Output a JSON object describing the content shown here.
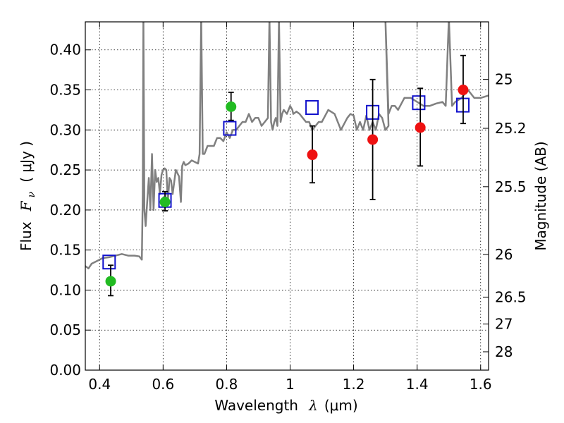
{
  "chart_data": {
    "type": "scatter",
    "xlabel": "Wavelength",
    "xlabel_symbol": "λ",
    "xlabel_unit": "(μm)",
    "ylabel": "Flux",
    "ylabel_symbol": "F",
    "ylabel_subscript": "ν",
    "ylabel_unit": "( μJy )",
    "y2label": "Magnitude (AB)",
    "xlim": [
      0.355,
      1.625
    ],
    "ylim": [
      0.0,
      0.435
    ],
    "grid": true,
    "x_ticks": [
      {
        "value": 0.4,
        "label": "0.4"
      },
      {
        "value": 0.6,
        "label": "0.6"
      },
      {
        "value": 0.8,
        "label": "0.8"
      },
      {
        "value": 1.0,
        "label": "1"
      },
      {
        "value": 1.2,
        "label": "1.2"
      },
      {
        "value": 1.4,
        "label": "1.4"
      },
      {
        "value": 1.6,
        "label": "1.6"
      }
    ],
    "y_ticks": [
      {
        "value": 0.0,
        "label": "0.00"
      },
      {
        "value": 0.05,
        "label": "0.05"
      },
      {
        "value": 0.1,
        "label": "0.10"
      },
      {
        "value": 0.15,
        "label": "0.15"
      },
      {
        "value": 0.2,
        "label": "0.20"
      },
      {
        "value": 0.25,
        "label": "0.25"
      },
      {
        "value": 0.3,
        "label": "0.30"
      },
      {
        "value": 0.35,
        "label": "0.35"
      },
      {
        "value": 0.4,
        "label": "0.40"
      }
    ],
    "y2_ticks": [
      {
        "value": 25,
        "label": "25"
      },
      {
        "value": 25.2,
        "label": "25.2"
      },
      {
        "value": 25.5,
        "label": "25.5"
      },
      {
        "value": 26,
        "label": "26"
      },
      {
        "value": 26.5,
        "label": "26.5"
      },
      {
        "value": 27,
        "label": "27"
      },
      {
        "value": 28,
        "label": "28"
      }
    ],
    "template_color": "#808080",
    "template_spectrum": {
      "x": [
        0.355,
        0.365,
        0.375,
        0.39,
        0.41,
        0.43,
        0.45,
        0.47,
        0.49,
        0.51,
        0.525,
        0.533,
        0.536,
        0.538,
        0.541,
        0.545,
        0.55,
        0.555,
        0.56,
        0.565,
        0.57,
        0.575,
        0.58,
        0.585,
        0.59,
        0.595,
        0.6,
        0.605,
        0.61,
        0.615,
        0.62,
        0.625,
        0.63,
        0.64,
        0.65,
        0.656,
        0.66,
        0.665,
        0.67,
        0.68,
        0.69,
        0.7,
        0.71,
        0.715,
        0.72,
        0.725,
        0.73,
        0.74,
        0.75,
        0.76,
        0.77,
        0.78,
        0.79,
        0.8,
        0.81,
        0.82,
        0.83,
        0.84,
        0.85,
        0.86,
        0.87,
        0.88,
        0.89,
        0.9,
        0.91,
        0.92,
        0.93,
        0.935,
        0.94,
        0.945,
        0.95,
        0.955,
        0.96,
        0.965,
        0.97,
        0.975,
        0.98,
        0.99,
        1.0,
        1.007,
        1.01,
        1.02,
        1.03,
        1.04,
        1.05,
        1.06,
        1.07,
        1.08,
        1.09,
        1.1,
        1.12,
        1.14,
        1.16,
        1.18,
        1.19,
        1.2,
        1.21,
        1.22,
        1.23,
        1.24,
        1.25,
        1.26,
        1.27,
        1.28,
        1.29,
        1.3,
        1.31,
        1.3,
        1.31,
        1.32,
        1.33,
        1.34,
        1.36,
        1.38,
        1.4,
        1.42,
        1.44,
        1.46,
        1.48,
        1.49,
        1.5,
        1.51,
        1.52,
        1.54,
        1.56,
        1.58,
        1.6,
        1.625
      ],
      "y": [
        0.13,
        0.127,
        0.133,
        0.136,
        0.14,
        0.141,
        0.143,
        0.145,
        0.143,
        0.143,
        0.142,
        0.138,
        0.22,
        0.44,
        0.2,
        0.18,
        0.21,
        0.24,
        0.2,
        0.27,
        0.2,
        0.25,
        0.235,
        0.24,
        0.22,
        0.244,
        0.25,
        0.252,
        0.25,
        0.21,
        0.24,
        0.237,
        0.22,
        0.25,
        0.242,
        0.21,
        0.255,
        0.26,
        0.256,
        0.258,
        0.262,
        0.26,
        0.258,
        0.27,
        0.44,
        0.27,
        0.27,
        0.28,
        0.28,
        0.28,
        0.29,
        0.29,
        0.286,
        0.297,
        0.29,
        0.3,
        0.3,
        0.305,
        0.31,
        0.31,
        0.32,
        0.31,
        0.315,
        0.315,
        0.305,
        0.31,
        0.315,
        0.44,
        0.31,
        0.3,
        0.31,
        0.315,
        0.305,
        0.44,
        0.31,
        0.32,
        0.325,
        0.32,
        0.33,
        0.325,
        0.32,
        0.323,
        0.32,
        0.315,
        0.31,
        0.31,
        0.3,
        0.305,
        0.31,
        0.31,
        0.325,
        0.32,
        0.3,
        0.315,
        0.32,
        0.318,
        0.3,
        0.31,
        0.3,
        0.318,
        0.3,
        0.31,
        0.3,
        0.32,
        0.315,
        0.3,
        0.305,
        0.44,
        0.32,
        0.33,
        0.33,
        0.325,
        0.34,
        0.34,
        0.335,
        0.33,
        0.33,
        0.333,
        0.335,
        0.33,
        0.44,
        0.33,
        0.335,
        0.34,
        0.35,
        0.34,
        0.34,
        0.343
      ]
    },
    "series": [
      {
        "marker": "circle",
        "color": "#22bb22",
        "points": [
          {
            "x": 0.435,
            "y": 0.111,
            "err_low": 0.093,
            "err_high": 0.131
          },
          {
            "x": 0.606,
            "y": 0.21,
            "err_low": 0.199,
            "err_high": 0.223
          },
          {
            "x": 0.814,
            "y": 0.329,
            "err_low": 0.312,
            "err_high": 0.347
          }
        ]
      },
      {
        "marker": "circle",
        "color": "#ee1111",
        "points": [
          {
            "x": 1.07,
            "y": 0.269,
            "err_low": 0.234,
            "err_high": 0.305
          },
          {
            "x": 1.26,
            "y": 0.288,
            "err_low": 0.213,
            "err_high": 0.363
          },
          {
            "x": 1.41,
            "y": 0.303,
            "err_low": 0.255,
            "err_high": 0.352
          },
          {
            "x": 1.545,
            "y": 0.35,
            "err_low": 0.308,
            "err_high": 0.393
          }
        ]
      },
      {
        "marker": "square",
        "color": "#1111cc",
        "points": [
          {
            "x": 0.43,
            "y": 0.135
          },
          {
            "x": 0.606,
            "y": 0.212
          },
          {
            "x": 0.81,
            "y": 0.302
          },
          {
            "x": 1.069,
            "y": 0.328
          },
          {
            "x": 1.26,
            "y": 0.322
          },
          {
            "x": 1.405,
            "y": 0.334
          },
          {
            "x": 1.544,
            "y": 0.331
          }
        ]
      }
    ]
  }
}
